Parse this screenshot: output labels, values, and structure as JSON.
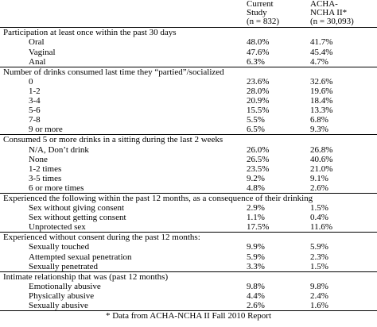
{
  "table": {
    "columns": [
      [
        "Current",
        "Study",
        "(n = 832)"
      ],
      [
        "ACHA-",
        "NCHA II*",
        "(n = 30,093)"
      ]
    ],
    "sections": [
      {
        "title": "Participation at least once within the past 30 days",
        "rows": [
          [
            "Oral",
            "48.0%",
            "41.7%"
          ],
          [
            "Vaginal",
            "47.6%",
            "45.4%"
          ],
          [
            "Anal",
            "6.3%",
            "4.7%"
          ]
        ]
      },
      {
        "title": "Number of drinks consumed last time they “partied”/socialized",
        "rows": [
          [
            "0",
            "23.6%",
            "32.6%"
          ],
          [
            "1-2",
            "28.0%",
            "19.6%"
          ],
          [
            "3-4",
            "20.9%",
            "18.4%"
          ],
          [
            "5-6",
            "15.5%",
            "13.3%"
          ],
          [
            "7-8",
            "5.5%",
            "6.8%"
          ],
          [
            "9 or more",
            "6.5%",
            "9.3%"
          ]
        ]
      },
      {
        "title": "Consumed 5 or more drinks in a sitting during the last 2 weeks",
        "rows": [
          [
            "N/A, Don’t drink",
            "26.0%",
            "26.8%"
          ],
          [
            "None",
            "26.5%",
            "40.6%"
          ],
          [
            "1-2 times",
            "23.5%",
            "21.0%"
          ],
          [
            "3-5 times",
            "9.2%",
            "9.1%"
          ],
          [
            "6 or more times",
            "4.8%",
            "2.6%"
          ]
        ]
      },
      {
        "title": "Experienced the following within the past 12 months, as a consequence of their drinking",
        "rows": [
          [
            "Sex without giving consent",
            "2.9%",
            "1.5%"
          ],
          [
            "Sex without getting consent",
            "1.1%",
            "0.4%"
          ],
          [
            "Unprotected sex",
            "17.5%",
            "11.6%"
          ]
        ]
      },
      {
        "title": "Experienced without consent during the past 12 months:",
        "rows": [
          [
            "Sexually touched",
            "9.9%",
            "5.9%"
          ],
          [
            "Attempted sexual penetration",
            "5.9%",
            "2.3%"
          ],
          [
            "Sexually penetrated",
            "3.3%",
            "1.5%"
          ]
        ]
      },
      {
        "title": "Intimate relationship that was (past 12 months)",
        "rows": [
          [
            "Emotionally abusive",
            "9.8%",
            "9.8%"
          ],
          [
            "Physically abusive",
            "4.4%",
            "2.4%"
          ],
          [
            "Sexually abusive",
            "2.6%",
            "1.6%"
          ]
        ]
      }
    ],
    "footnote": "* Data from ACHA-NCHA II Fall 2010 Report"
  }
}
